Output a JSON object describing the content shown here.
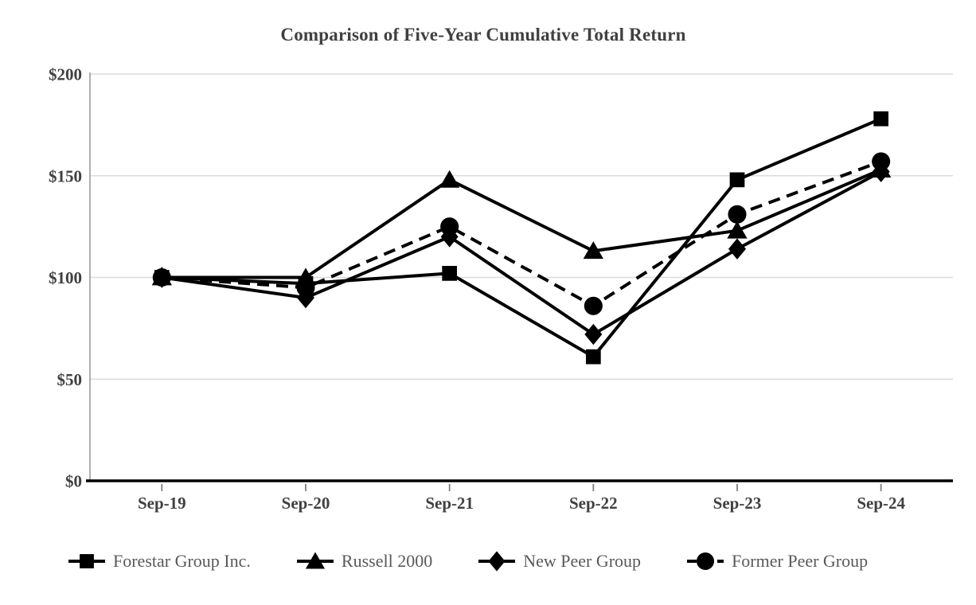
{
  "page": {
    "background": "#ffffff"
  },
  "chart_data": {
    "type": "line",
    "title": "Comparison of Five-Year Cumulative Total Return",
    "categories": [
      "Sep-19",
      "Sep-20",
      "Sep-21",
      "Sep-22",
      "Sep-23",
      "Sep-24"
    ],
    "series": [
      {
        "name": "Forestar Group Inc.",
        "marker": "square",
        "line_style": "solid",
        "color": "#000000",
        "values": [
          100,
          97,
          102,
          61,
          148,
          178
        ]
      },
      {
        "name": "Russell 2000",
        "marker": "triangle",
        "line_style": "solid",
        "color": "#000000",
        "values": [
          100,
          100,
          148,
          113,
          123,
          153
        ]
      },
      {
        "name": "New Peer Group",
        "marker": "diamond",
        "line_style": "solid",
        "color": "#000000",
        "values": [
          100,
          90,
          120,
          72,
          114,
          152
        ]
      },
      {
        "name": "Former Peer Group",
        "marker": "circle",
        "line_style": "dashed",
        "color": "#000000",
        "values": [
          100,
          95,
          125,
          86,
          131,
          157
        ]
      }
    ],
    "y_axis": {
      "min": 0,
      "max": 200,
      "step": 50,
      "tick_labels": [
        "$0",
        "$50",
        "$100",
        "$150",
        "$200"
      ],
      "format": "currency"
    },
    "grid": true,
    "legend_position": "bottom",
    "styles": {
      "grid_color": "#dcdcdc",
      "axis_color": "#a6a6a6",
      "baseline_color": "#000000",
      "tick_color": "#7f7f7f",
      "axis_text_color": "#404040",
      "legend_text_color": "#595959",
      "series_color": "#000000"
    }
  }
}
